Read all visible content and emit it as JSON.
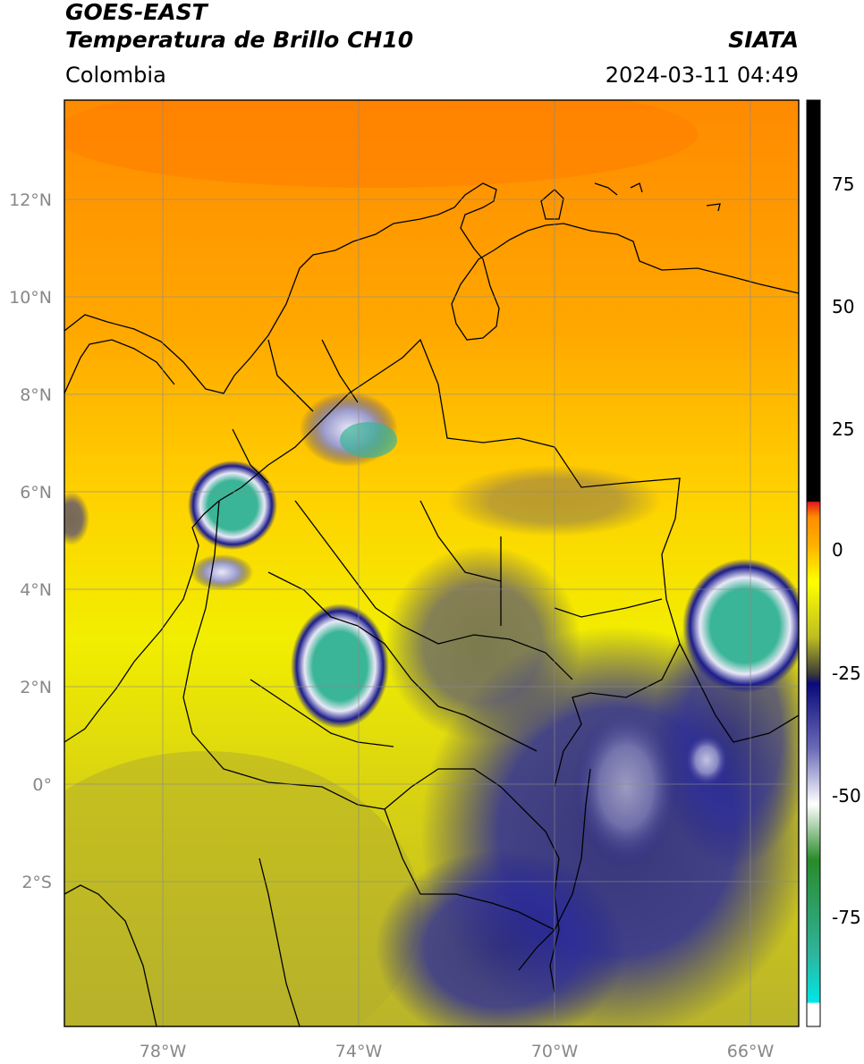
{
  "header": {
    "title_line1": "GOES-EAST",
    "title_line2": "Temperatura de Brillo CH10",
    "region": "Colombia",
    "agency": "SIATA",
    "datetime": "2024-03-11 04:49"
  },
  "axes": {
    "lat_labels": [
      "12°N",
      "10°N",
      "8°N",
      "6°N",
      "4°N",
      "2°N",
      "0°",
      "2°S"
    ],
    "lon_labels": [
      "78°W",
      "74°W",
      "70°W",
      "66°W"
    ]
  },
  "colorbar": {
    "tick_labels": [
      "75",
      "50",
      "25",
      "0",
      "-25",
      "-50",
      "-75"
    ],
    "colors": {
      "black": "#000000",
      "red": "#e31a1c",
      "orange": "#ff8c00",
      "yellow": "#ffff00",
      "olive": "#bdbd22",
      "navy": "#0a0a7a",
      "white": "#ffffff",
      "green": "#2a8a2a",
      "teal": "#2fb39a",
      "cyan": "#00e6e6"
    }
  },
  "map_colors": {
    "warm_top": "#ff8a00",
    "warm_mid": "#ffb300",
    "yellow": "#f2ee00",
    "olive": "#b9b42a",
    "cloud_blue": "#1c1c8c",
    "cloud_white": "#e8e8f6",
    "cold_teal": "#3bb597",
    "border": "#000000",
    "grid": "#8a8a8a"
  }
}
